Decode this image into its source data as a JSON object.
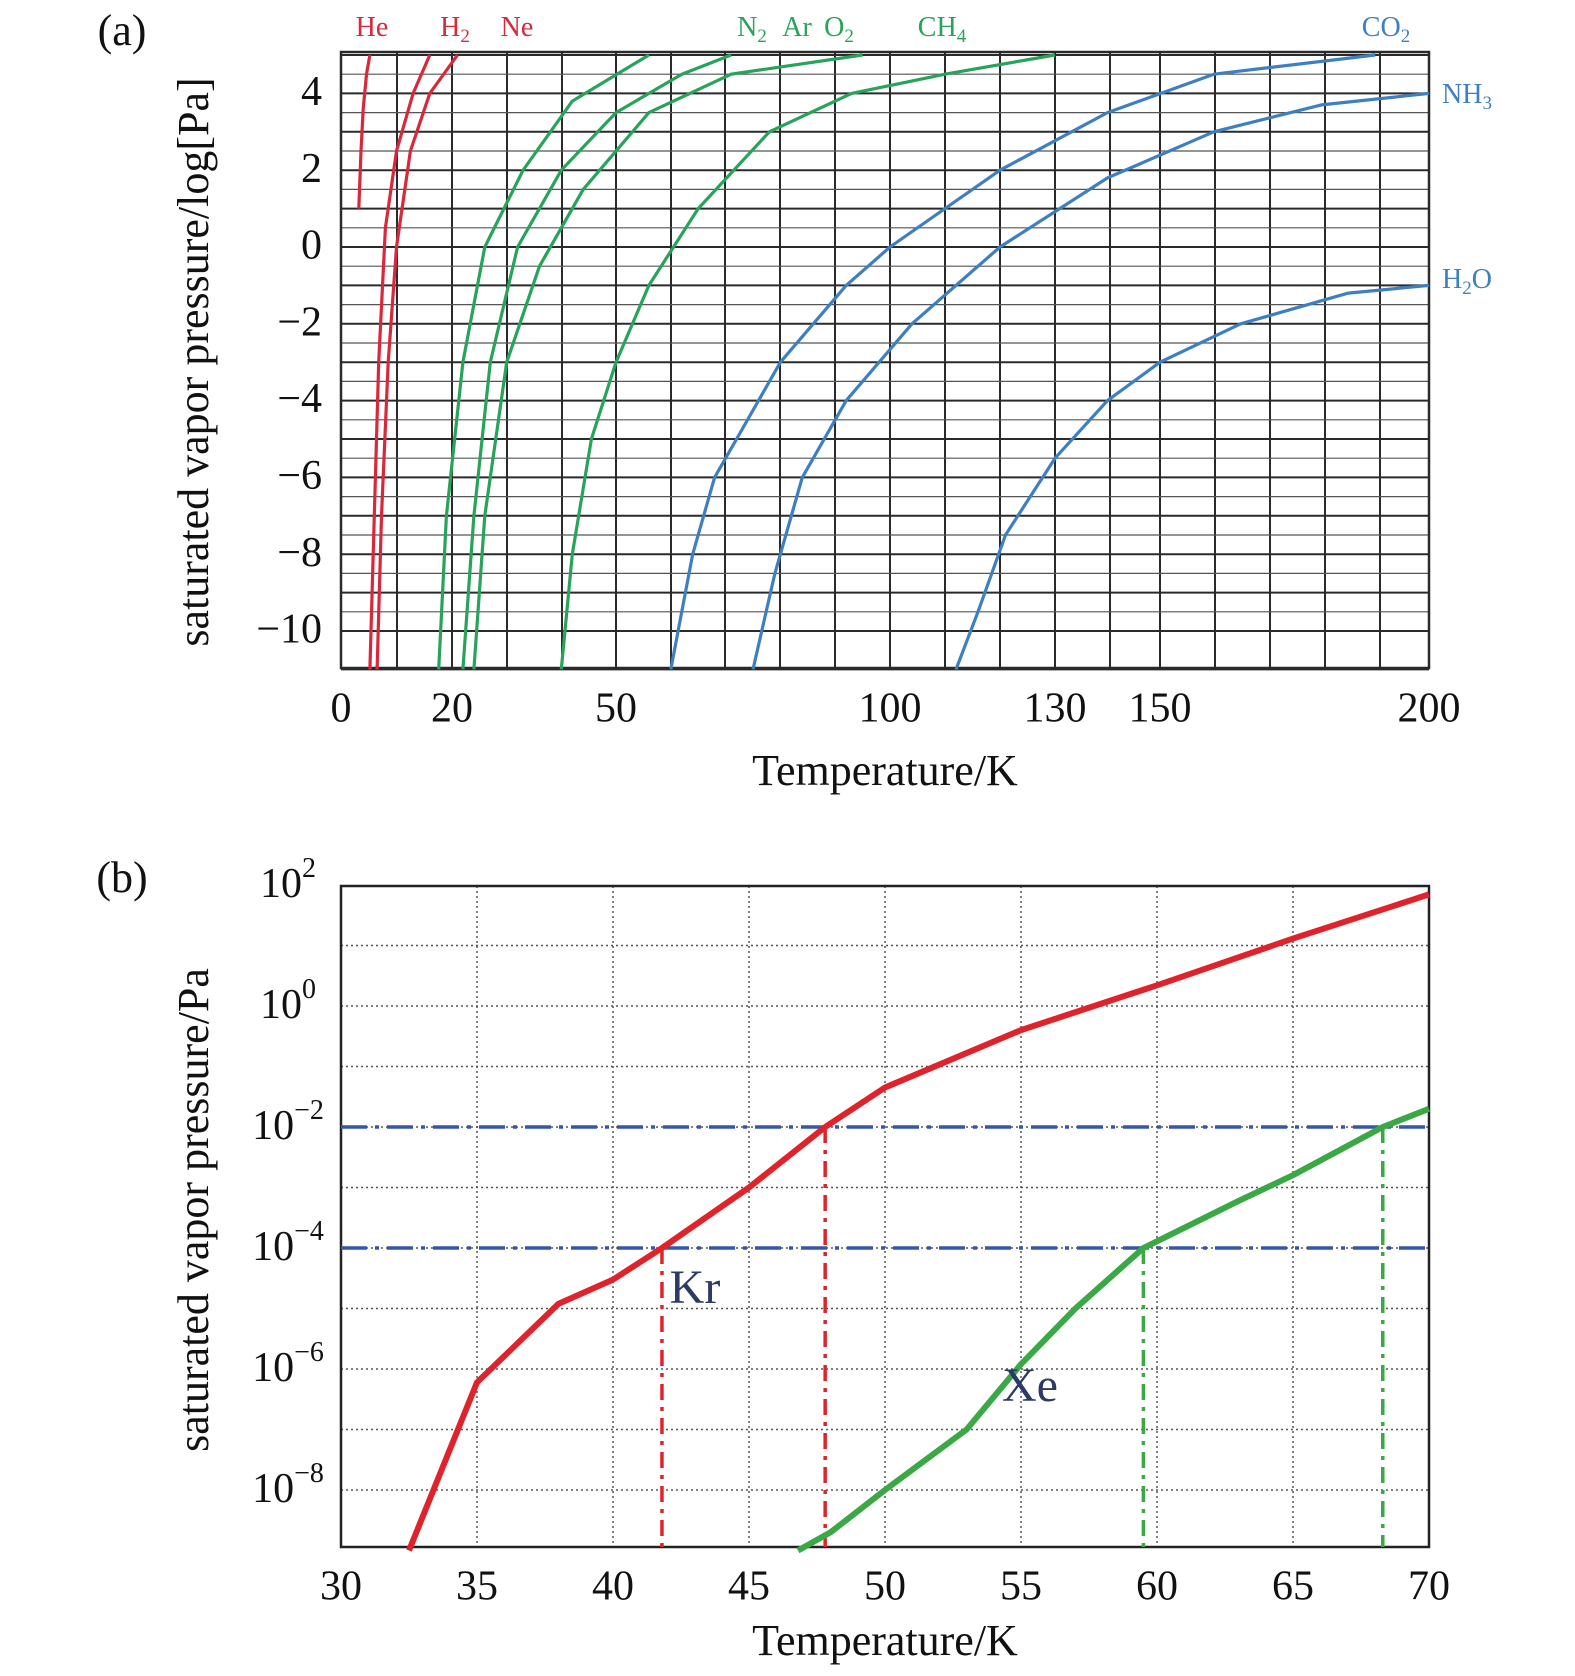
{
  "chart_data": [
    {
      "panel": "(a)",
      "type": "line",
      "xlabel": "Temperature/K",
      "ylabel": "saturated vapor pressure/log[Pa]",
      "x_scale": "nonuniform (grid columns not evenly spaced in K)",
      "x_ticks": [
        0,
        20,
        50,
        100,
        130,
        150,
        200
      ],
      "y_ticks": [
        -10,
        -8,
        -6,
        -4,
        -2,
        0,
        2,
        4
      ],
      "ylim": [
        -11,
        5
      ],
      "grid": "on",
      "series": [
        {
          "name": "He",
          "color": "#d8283a",
          "points": [
            [
              3.2,
              1
            ],
            [
              3.6,
              2.5
            ],
            [
              4.0,
              3.6
            ],
            [
              4.6,
              4.5
            ],
            [
              5.2,
              5
            ]
          ]
        },
        {
          "name": "H2",
          "color": "#d8283a",
          "points": [
            [
              5.2,
              -11
            ],
            [
              6.0,
              -7
            ],
            [
              6.8,
              -3
            ],
            [
              8.0,
              0.5
            ],
            [
              10.0,
              2.5
            ],
            [
              13.0,
              4
            ],
            [
              16.0,
              5
            ]
          ]
        },
        {
          "name": "Ne",
          "color": "#d8283a",
          "points": [
            [
              6.5,
              -11
            ],
            [
              7.3,
              -7
            ],
            [
              8.5,
              -3
            ],
            [
              10.0,
              0
            ],
            [
              12.5,
              2.5
            ],
            [
              16.0,
              4
            ],
            [
              21.0,
              5
            ]
          ]
        },
        {
          "name": "N2",
          "color": "#27a35a",
          "points": [
            [
              17.6,
              -11
            ],
            [
              19.0,
              -7
            ],
            [
              22.0,
              -3
            ],
            [
              26.0,
              0
            ],
            [
              33.0,
              2
            ],
            [
              42.0,
              3.8
            ],
            [
              56.0,
              5
            ]
          ]
        },
        {
          "name": "Ar",
          "color": "#27a35a",
          "points": [
            [
              22.0,
              -11
            ],
            [
              24.0,
              -7
            ],
            [
              27.0,
              -3
            ],
            [
              32.0,
              0
            ],
            [
              40.0,
              2
            ],
            [
              50.0,
              3.5
            ],
            [
              62.0,
              4.5
            ],
            [
              71.0,
              5
            ]
          ]
        },
        {
          "name": "O2",
          "color": "#27a35a",
          "points": [
            [
              24.0,
              -11
            ],
            [
              26.0,
              -7
            ],
            [
              30.0,
              -3
            ],
            [
              36.0,
              -0.5
            ],
            [
              44.0,
              1.5
            ],
            [
              56.0,
              3.5
            ],
            [
              71.0,
              4.5
            ],
            [
              95.0,
              5
            ]
          ]
        },
        {
          "name": "CH4",
          "color": "#27a35a",
          "points": [
            [
              40.0,
              -11
            ],
            [
              42.0,
              -8
            ],
            [
              45.5,
              -5
            ],
            [
              50.0,
              -3
            ],
            [
              56.0,
              -1
            ],
            [
              65.0,
              1
            ],
            [
              78.0,
              3
            ],
            [
              93.0,
              4
            ],
            [
              110.0,
              4.5
            ],
            [
              130.0,
              5
            ]
          ]
        },
        {
          "name": "CO2",
          "color": "#3e7fc1",
          "points": [
            [
              60.0,
              -11
            ],
            [
              64.0,
              -8
            ],
            [
              68.0,
              -6
            ],
            [
              72.0,
              -5
            ],
            [
              80.0,
              -3
            ],
            [
              92.0,
              -1
            ],
            [
              100.0,
              0
            ],
            [
              120.0,
              2
            ],
            [
              140.0,
              3.5
            ],
            [
              160.0,
              4.5
            ],
            [
              190.0,
              5
            ]
          ]
        },
        {
          "name": "NH3",
          "color": "#3e7fc1",
          "points": [
            [
              75.0,
              -11
            ],
            [
              79.0,
              -8.5
            ],
            [
              84.0,
              -6
            ],
            [
              92.0,
              -4
            ],
            [
              104.0,
              -2
            ],
            [
              120.0,
              0
            ],
            [
              140.0,
              1.8
            ],
            [
              160.0,
              3
            ],
            [
              180.0,
              3.7
            ],
            [
              200.0,
              4
            ]
          ]
        },
        {
          "name": "H2O",
          "color": "#3e7fc1",
          "points": [
            [
              112.0,
              -11
            ],
            [
              116.0,
              -9.5
            ],
            [
              121.0,
              -7.5
            ],
            [
              130.0,
              -5.5
            ],
            [
              140.0,
              -4
            ],
            [
              150.0,
              -3
            ],
            [
              165.0,
              -2
            ],
            [
              185.0,
              -1.2
            ],
            [
              200.0,
              -1
            ]
          ]
        }
      ],
      "series_labels": {
        "He": [
          "He",
          ""
        ],
        "H2": [
          "H",
          "2"
        ],
        "Ne": [
          "Ne",
          ""
        ],
        "N2": [
          "N",
          "2"
        ],
        "Ar": [
          "Ar",
          ""
        ],
        "O2": [
          "O",
          "2"
        ],
        "CH4": [
          "CH",
          "4"
        ],
        "CO2": [
          "CO",
          "2"
        ],
        "NH3": [
          "NH",
          "3"
        ],
        "H2O": [
          "H",
          "2",
          "O"
        ]
      }
    },
    {
      "panel": "(b)",
      "type": "line",
      "xlabel": "Temperature/K",
      "ylabel": "saturated vapor pressure/Pa",
      "y_scale": "log",
      "xlim": [
        30,
        70
      ],
      "ylim": [
        1e-09,
        200
      ],
      "x_ticks": [
        30,
        35,
        40,
        45,
        50,
        55,
        60,
        65,
        70
      ],
      "y_ticks": [
        {
          "base": "10",
          "exp": "2",
          "value": 100
        },
        {
          "base": "10",
          "exp": "0",
          "value": 1
        },
        {
          "base": "10",
          "exp": "−2",
          "value": 0.01
        },
        {
          "base": "10",
          "exp": "−4",
          "value": 0.0001
        },
        {
          "base": "10",
          "exp": "−6",
          "value": 1e-06
        },
        {
          "base": "10",
          "exp": "−8",
          "value": 1e-08
        }
      ],
      "grid": "on (dotted)",
      "series": [
        {
          "name": "Kr",
          "color": "#e0232b",
          "points": [
            [
              32.5,
              1e-09
            ],
            [
              35,
              6e-07
            ],
            [
              38,
              1.2e-05
            ],
            [
              40,
              3e-05
            ],
            [
              41.8,
              0.0001
            ],
            [
              45,
              0.001
            ],
            [
              47.8,
              0.01
            ],
            [
              50,
              0.045
            ],
            [
              55,
              0.4
            ],
            [
              60,
              2.2
            ],
            [
              65,
              13
            ],
            [
              70,
              70
            ]
          ]
        },
        {
          "name": "Xe",
          "color": "#3aa845",
          "points": [
            [
              46.8,
              1e-09
            ],
            [
              48,
              2e-09
            ],
            [
              50,
              1e-08
            ],
            [
              53,
              1e-07
            ],
            [
              55,
              1.2e-06
            ],
            [
              57,
              1e-05
            ],
            [
              59.5,
              0.0001
            ],
            [
              63,
              0.0006
            ],
            [
              65,
              0.0016
            ],
            [
              68.3,
              0.01
            ],
            [
              70,
              0.02
            ]
          ]
        }
      ],
      "reference_lines": {
        "horizontal": [
          0.01,
          0.0001
        ],
        "vertical": [
          {
            "x": 41.8,
            "color": "#e0232b",
            "y_top": 0.0001
          },
          {
            "x": 47.8,
            "color": "#e0232b",
            "y_top": 0.01
          },
          {
            "x": 59.5,
            "color": "#3aa845",
            "y_top": 0.0001
          },
          {
            "x": 68.3,
            "color": "#3aa845",
            "y_top": 0.01
          }
        ],
        "horizontal_color": "#3657a8"
      },
      "annotations": [
        {
          "text": "Kr",
          "series": "Kr"
        },
        {
          "text": "Xe",
          "series": "Xe"
        }
      ]
    }
  ]
}
